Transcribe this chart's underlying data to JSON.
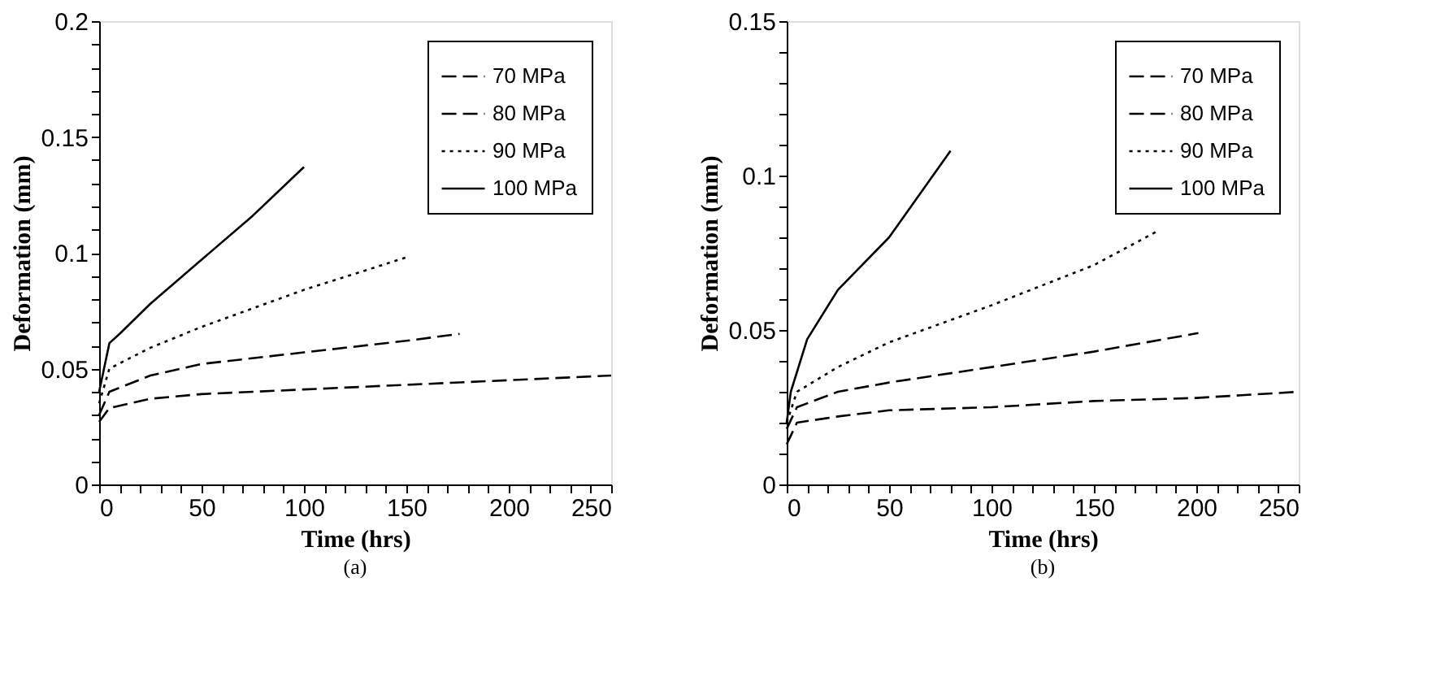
{
  "chart_data": [
    {
      "type": "line",
      "title": "(a)",
      "xlabel": "Time (hrs)",
      "ylabel": "Deformation (mm)",
      "legend": "top right",
      "grid": false,
      "xlim": [
        0,
        250
      ],
      "ylim": [
        0,
        0.2
      ],
      "xticks": [
        0,
        {
          "value": 10,
          "label": null
        },
        {
          "value": 20,
          "label": null
        },
        {
          "value": 30,
          "label": null
        },
        {
          "value": 40,
          "label": null
        },
        50,
        {
          "value": 60,
          "label": null
        },
        {
          "value": 70,
          "label": null
        },
        {
          "value": 80,
          "label": null
        },
        {
          "value": 90,
          "label": null
        },
        100,
        {
          "value": 110,
          "label": null
        },
        {
          "value": 120,
          "label": null
        },
        {
          "value": 130,
          "label": null
        },
        {
          "value": 140,
          "label": null
        },
        150,
        {
          "value": 160,
          "label": null
        },
        {
          "value": 170,
          "label": null
        },
        {
          "value": 180,
          "label": null
        },
        {
          "value": 190,
          "label": null
        },
        200,
        {
          "value": 210,
          "label": null
        },
        {
          "value": 220,
          "label": null
        },
        {
          "value": 230,
          "label": null
        },
        {
          "value": 240,
          "label": null
        },
        250
      ],
      "yticks": [
        0,
        {
          "value": 0.01,
          "label": null
        },
        {
          "value": 0.02,
          "label": null
        },
        {
          "value": 0.03,
          "label": null
        },
        {
          "value": 0.04,
          "label": null
        },
        0.05,
        {
          "value": 0.06,
          "label": null
        },
        {
          "value": 0.07,
          "label": null
        },
        {
          "value": 0.08,
          "label": null
        },
        {
          "value": 0.09,
          "label": null
        },
        0.1,
        {
          "value": 0.11,
          "label": null
        },
        {
          "value": 0.12,
          "label": null
        },
        {
          "value": 0.13,
          "label": null
        },
        {
          "value": 0.14,
          "label": null
        },
        0.15,
        {
          "value": 0.16,
          "label": null
        },
        {
          "value": 0.17,
          "label": null
        },
        {
          "value": 0.18,
          "label": null
        },
        {
          "value": 0.19,
          "label": null
        },
        0.2
      ],
      "series": [
        {
          "name": "70 MPa",
          "color": "#000000",
          "line_style": "dashed",
          "x": [
            0,
            5,
            25,
            50,
            100,
            150,
            200,
            250
          ],
          "values": [
            0.027,
            0.033,
            0.037,
            0.039,
            0.041,
            0.043,
            0.045,
            0.047
          ]
        },
        {
          "name": "80 MPa",
          "color": "#000000",
          "line_style": "dashed",
          "x": [
            0,
            5,
            25,
            50,
            100,
            150,
            176
          ],
          "values": [
            0.03,
            0.04,
            0.047,
            0.052,
            0.057,
            0.062,
            0.065
          ]
        },
        {
          "name": "90 MPa",
          "color": "#000000",
          "line_style": "dotted",
          "x": [
            0,
            5,
            25,
            50,
            100,
            150
          ],
          "values": [
            0.035,
            0.05,
            0.059,
            0.068,
            0.084,
            0.098
          ]
        },
        {
          "name": "100 MPa",
          "color": "#000000",
          "line_style": "solid",
          "x": [
            0,
            5,
            10,
            25,
            50,
            75,
            100
          ],
          "values": [
            0.04,
            0.061,
            0.065,
            0.078,
            0.097,
            0.116,
            0.137
          ]
        }
      ]
    },
    {
      "type": "line",
      "title": "(b)",
      "xlabel": "Time (hrs)",
      "ylabel": "Deformation (mm)",
      "legend": "top right",
      "grid": false,
      "xlim": [
        0,
        250
      ],
      "ylim": [
        0,
        0.15
      ],
      "xticks": [
        0,
        {
          "value": 10,
          "label": null
        },
        {
          "value": 20,
          "label": null
        },
        {
          "value": 30,
          "label": null
        },
        {
          "value": 40,
          "label": null
        },
        50,
        {
          "value": 60,
          "label": null
        },
        {
          "value": 70,
          "label": null
        },
        {
          "value": 80,
          "label": null
        },
        {
          "value": 90,
          "label": null
        },
        100,
        {
          "value": 110,
          "label": null
        },
        {
          "value": 120,
          "label": null
        },
        {
          "value": 130,
          "label": null
        },
        {
          "value": 140,
          "label": null
        },
        150,
        {
          "value": 160,
          "label": null
        },
        {
          "value": 170,
          "label": null
        },
        {
          "value": 180,
          "label": null
        },
        {
          "value": 190,
          "label": null
        },
        200,
        {
          "value": 210,
          "label": null
        },
        {
          "value": 220,
          "label": null
        },
        {
          "value": 230,
          "label": null
        },
        {
          "value": 240,
          "label": null
        },
        250
      ],
      "yticks": [
        0,
        {
          "value": 0.01,
          "label": null
        },
        {
          "value": 0.02,
          "label": null
        },
        {
          "value": 0.03,
          "label": null
        },
        {
          "value": 0.04,
          "label": null
        },
        0.05,
        {
          "value": 0.06,
          "label": null
        },
        {
          "value": 0.07,
          "label": null
        },
        {
          "value": 0.08,
          "label": null
        },
        {
          "value": 0.09,
          "label": null
        },
        0.1,
        {
          "value": 0.11,
          "label": null
        },
        {
          "value": 0.12,
          "label": null
        },
        {
          "value": 0.13,
          "label": null
        },
        {
          "value": 0.14,
          "label": null
        },
        0.15
      ],
      "series": [
        {
          "name": "70 MPa",
          "color": "#000000",
          "line_style": "dashed",
          "x": [
            0,
            5,
            25,
            50,
            100,
            150,
            200,
            250
          ],
          "values": [
            0.013,
            0.02,
            0.022,
            0.024,
            0.025,
            0.027,
            0.028,
            0.03
          ]
        },
        {
          "name": "80 MPa",
          "color": "#000000",
          "line_style": "dashed",
          "x": [
            0,
            5,
            25,
            50,
            100,
            150,
            201
          ],
          "values": [
            0.018,
            0.025,
            0.03,
            0.033,
            0.038,
            0.043,
            0.049
          ]
        },
        {
          "name": "90 MPa",
          "color": "#000000",
          "line_style": "dotted",
          "x": [
            0,
            5,
            25,
            50,
            100,
            150,
            181
          ],
          "values": [
            0.02,
            0.03,
            0.038,
            0.046,
            0.058,
            0.071,
            0.082
          ]
        },
        {
          "name": "100 MPa",
          "color": "#000000",
          "line_style": "solid",
          "x": [
            0,
            2,
            10,
            25,
            50,
            80
          ],
          "values": [
            0.02,
            0.03,
            0.047,
            0.063,
            0.08,
            0.108
          ]
        }
      ]
    }
  ]
}
